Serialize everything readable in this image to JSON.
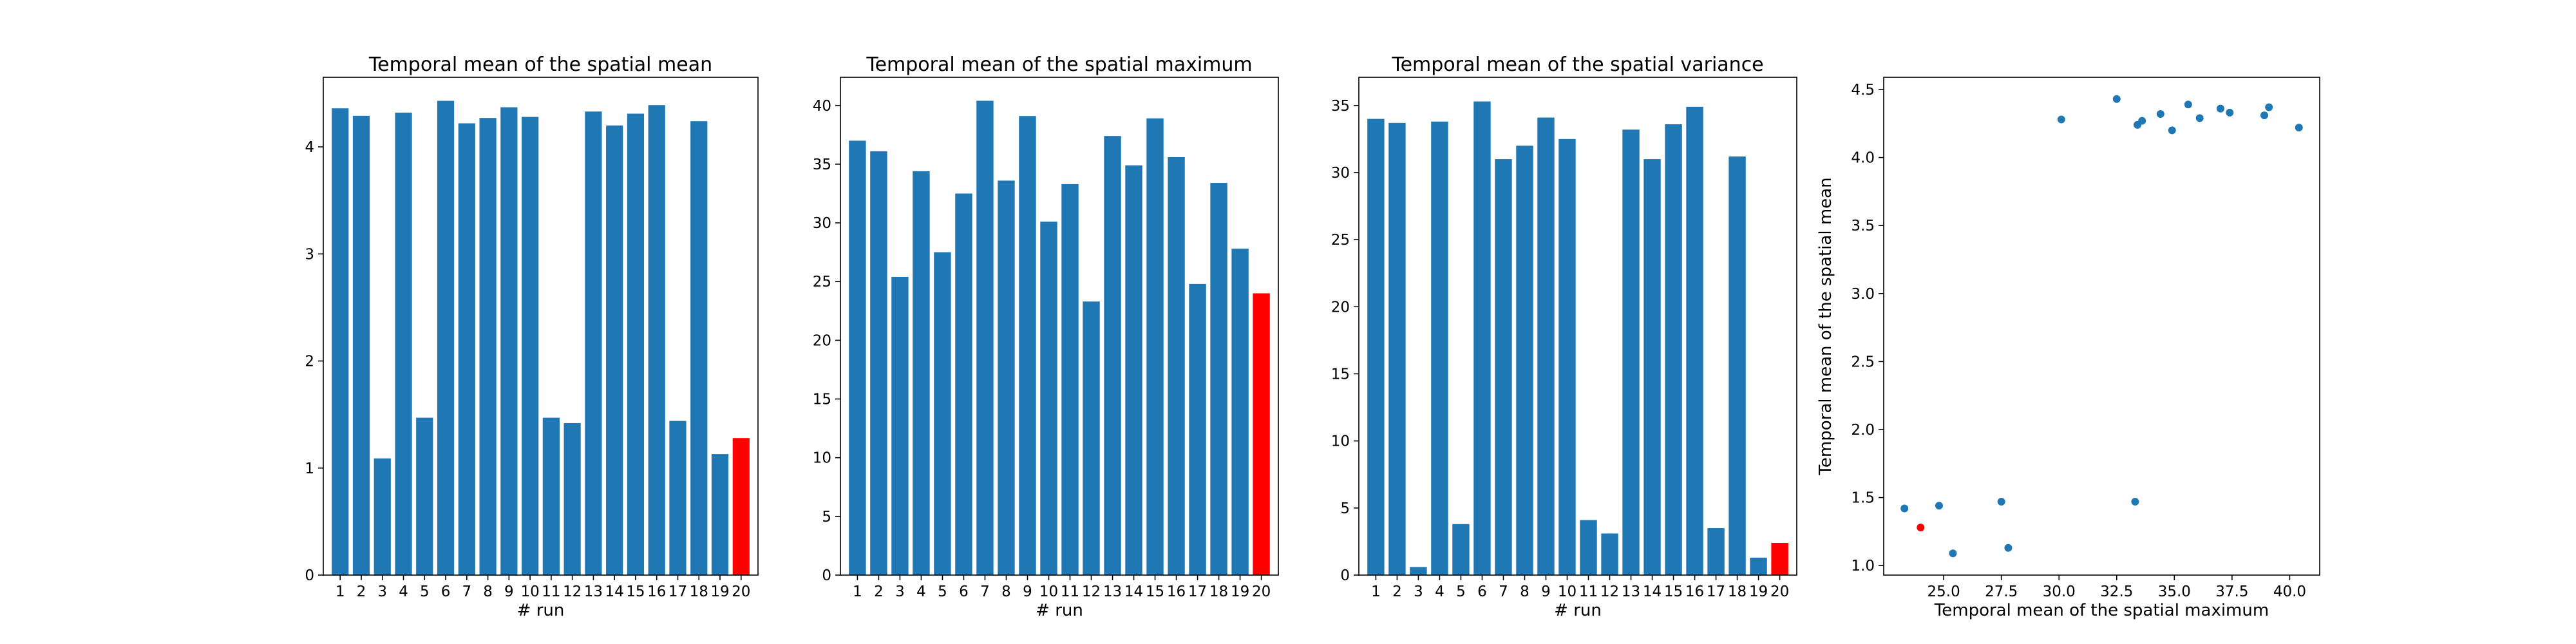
{
  "chart_data": [
    {
      "type": "bar",
      "title": "Temporal mean of the spatial mean",
      "xlabel": "# run",
      "ylabel": "",
      "categories": [
        "1",
        "2",
        "3",
        "4",
        "5",
        "6",
        "7",
        "8",
        "9",
        "10",
        "11",
        "12",
        "13",
        "14",
        "15",
        "16",
        "17",
        "18",
        "19",
        "20"
      ],
      "values": [
        4.36,
        4.29,
        1.09,
        4.32,
        1.47,
        4.43,
        4.22,
        4.27,
        4.37,
        4.28,
        1.47,
        1.42,
        4.33,
        4.2,
        4.31,
        4.39,
        1.44,
        4.24,
        1.13,
        1.28
      ],
      "ylim": [
        0,
        4.65
      ],
      "yticks": [
        0,
        1,
        2,
        3,
        4
      ],
      "highlight_index": 19,
      "colors": {
        "bar": "#1f77b4",
        "highlight": "#ff0000"
      }
    },
    {
      "type": "bar",
      "title": "Temporal mean of the spatial maximum",
      "xlabel": "# run",
      "ylabel": "",
      "categories": [
        "1",
        "2",
        "3",
        "4",
        "5",
        "6",
        "7",
        "8",
        "9",
        "10",
        "11",
        "12",
        "13",
        "14",
        "15",
        "16",
        "17",
        "18",
        "19",
        "20"
      ],
      "values": [
        37.0,
        36.1,
        25.4,
        34.4,
        27.5,
        32.5,
        40.4,
        33.6,
        39.1,
        30.1,
        33.3,
        23.3,
        37.4,
        34.9,
        38.9,
        35.6,
        24.8,
        33.4,
        27.8,
        24.0
      ],
      "ylim": [
        0,
        42.4
      ],
      "yticks": [
        0,
        5,
        10,
        15,
        20,
        25,
        30,
        35,
        40
      ],
      "highlight_index": 19,
      "colors": {
        "bar": "#1f77b4",
        "highlight": "#ff0000"
      }
    },
    {
      "type": "bar",
      "title": "Temporal mean of the spatial variance",
      "xlabel": "# run",
      "ylabel": "",
      "categories": [
        "1",
        "2",
        "3",
        "4",
        "5",
        "6",
        "7",
        "8",
        "9",
        "10",
        "11",
        "12",
        "13",
        "14",
        "15",
        "16",
        "17",
        "18",
        "19",
        "20"
      ],
      "values": [
        34.0,
        33.7,
        0.6,
        33.8,
        3.8,
        35.3,
        31.0,
        32.0,
        34.1,
        32.5,
        4.1,
        3.1,
        33.2,
        31.0,
        33.6,
        34.9,
        3.5,
        31.2,
        1.3,
        2.4
      ],
      "ylim": [
        0,
        37.1
      ],
      "yticks": [
        0,
        5,
        10,
        15,
        20,
        25,
        30,
        35
      ],
      "highlight_index": 19,
      "colors": {
        "bar": "#1f77b4",
        "highlight": "#ff0000"
      }
    },
    {
      "type": "scatter",
      "title": "",
      "xlabel": "Temporal mean of the spatial maximum",
      "ylabel": "Temporal mean of the spatial mean",
      "points": [
        {
          "x": 37.0,
          "y": 4.36
        },
        {
          "x": 36.1,
          "y": 4.29
        },
        {
          "x": 25.4,
          "y": 1.09
        },
        {
          "x": 34.4,
          "y": 4.32
        },
        {
          "x": 27.5,
          "y": 1.47
        },
        {
          "x": 32.5,
          "y": 4.43
        },
        {
          "x": 40.4,
          "y": 4.22
        },
        {
          "x": 33.6,
          "y": 4.27
        },
        {
          "x": 39.1,
          "y": 4.37
        },
        {
          "x": 30.1,
          "y": 4.28
        },
        {
          "x": 33.3,
          "y": 1.47
        },
        {
          "x": 23.3,
          "y": 1.42
        },
        {
          "x": 37.4,
          "y": 4.33
        },
        {
          "x": 34.9,
          "y": 4.2
        },
        {
          "x": 38.9,
          "y": 4.31
        },
        {
          "x": 35.6,
          "y": 4.39
        },
        {
          "x": 24.8,
          "y": 1.44
        },
        {
          "x": 33.4,
          "y": 4.24
        },
        {
          "x": 27.8,
          "y": 1.13
        },
        {
          "x": 24.0,
          "y": 1.28
        }
      ],
      "xlim": [
        22.4,
        41.3
      ],
      "ylim": [
        0.93,
        4.59
      ],
      "xticks": [
        25.0,
        27.5,
        30.0,
        32.5,
        35.0,
        37.5,
        40.0
      ],
      "xtick_labels": [
        "25.0",
        "27.5",
        "30.0",
        "32.5",
        "35.0",
        "37.5",
        "40.0"
      ],
      "yticks": [
        1.0,
        1.5,
        2.0,
        2.5,
        3.0,
        3.5,
        4.0,
        4.5
      ],
      "ytick_labels": [
        "1.0",
        "1.5",
        "2.0",
        "2.5",
        "3.0",
        "3.5",
        "4.0",
        "4.5"
      ],
      "highlight_index": 19,
      "colors": {
        "point": "#1f77b4",
        "highlight": "#ff0000"
      }
    }
  ]
}
